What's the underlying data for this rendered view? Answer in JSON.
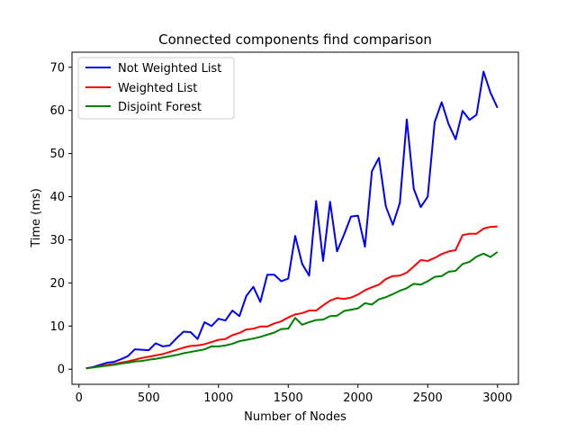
{
  "chart_data": {
    "type": "line",
    "title": "Connected components find comparison",
    "xlabel": "Number of Nodes",
    "ylabel": "Time (ms)",
    "xlim": [
      -50,
      3150
    ],
    "ylim": [
      -3.5,
      73.5
    ],
    "xticks": [
      0,
      500,
      1000,
      1500,
      2000,
      2500,
      3000
    ],
    "yticks": [
      0,
      10,
      20,
      30,
      40,
      50,
      60,
      70
    ],
    "grid": false,
    "legend": "top-left",
    "x": [
      50,
      100,
      150,
      200,
      250,
      300,
      350,
      400,
      450,
      500,
      550,
      600,
      650,
      700,
      750,
      800,
      850,
      900,
      950,
      1000,
      1050,
      1100,
      1150,
      1200,
      1250,
      1300,
      1350,
      1400,
      1450,
      1500,
      1550,
      1600,
      1650,
      1700,
      1750,
      1800,
      1850,
      1900,
      1950,
      2000,
      2050,
      2100,
      2150,
      2200,
      2250,
      2300,
      2350,
      2400,
      2450,
      2500,
      2550,
      2600,
      2650,
      2700,
      2750,
      2800,
      2850,
      2900,
      2950,
      3000
    ],
    "series": [
      {
        "name": "Not Weighted List",
        "color": "#0000ff",
        "values": [
          0.2,
          0.5,
          1.0,
          1.5,
          1.7,
          2.3,
          3.0,
          4.6,
          4.5,
          4.4,
          6.0,
          5.3,
          5.5,
          7.2,
          8.7,
          8.6,
          7.0,
          10.9,
          10.0,
          11.7,
          11.3,
          13.6,
          12.3,
          17.0,
          19.1,
          15.6,
          21.9,
          21.9,
          20.4,
          21.0,
          30.9,
          24.4,
          21.7,
          39.0,
          25.1,
          38.8,
          27.3,
          31.2,
          35.4,
          35.6,
          28.4,
          45.9,
          49.0,
          37.7,
          33.5,
          38.5,
          57.9,
          41.8,
          37.6,
          40.0,
          57.3,
          61.9,
          56.8,
          53.3,
          59.9,
          57.8,
          59.0,
          69.0,
          64.1,
          60.6
        ]
      },
      {
        "name": "Weighted List",
        "color": "#ff0000",
        "values": [
          0.2,
          0.4,
          0.7,
          1.0,
          1.2,
          1.5,
          1.8,
          2.2,
          2.6,
          2.9,
          3.2,
          3.5,
          4.0,
          4.5,
          5.0,
          5.4,
          5.5,
          5.8,
          6.3,
          6.8,
          7.0,
          7.9,
          8.4,
          9.2,
          9.4,
          9.9,
          9.9,
          10.6,
          11.1,
          12.0,
          12.7,
          13.0,
          13.6,
          13.6,
          14.8,
          15.9,
          16.5,
          16.3,
          16.6,
          17.3,
          18.3,
          19.0,
          19.6,
          20.9,
          21.6,
          21.7,
          22.4,
          23.8,
          25.3,
          25.1,
          25.8,
          26.7,
          27.3,
          27.6,
          31.1,
          31.4,
          31.4,
          32.6,
          33.0,
          33.1
        ]
      },
      {
        "name": "Disjoint Forest",
        "color": "#008000",
        "values": [
          0.2,
          0.4,
          0.6,
          0.8,
          1.0,
          1.3,
          1.5,
          1.8,
          1.9,
          2.2,
          2.4,
          2.7,
          3.0,
          3.3,
          3.7,
          4.0,
          4.3,
          4.6,
          5.3,
          5.3,
          5.5,
          5.9,
          6.5,
          6.8,
          7.1,
          7.5,
          8.0,
          8.5,
          9.3,
          9.4,
          11.9,
          10.3,
          10.9,
          11.4,
          11.5,
          12.3,
          12.4,
          13.5,
          13.8,
          14.1,
          15.3,
          15.0,
          16.2,
          16.7,
          17.4,
          18.2,
          18.8,
          19.8,
          19.6,
          20.4,
          21.4,
          21.6,
          22.6,
          22.8,
          24.4,
          24.9,
          26.1,
          26.8,
          26.0,
          27.2
        ]
      }
    ]
  }
}
